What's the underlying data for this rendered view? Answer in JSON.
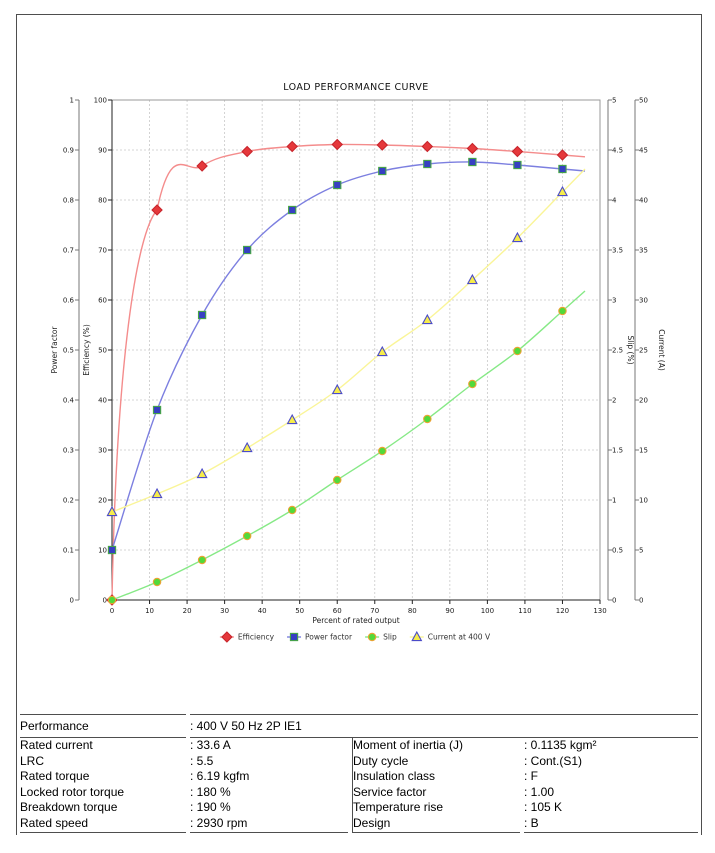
{
  "chart_data": {
    "type": "line",
    "title": "LOAD PERFORMANCE CURVE",
    "xlabel": "Percent of rated output",
    "x_range": [
      0,
      130
    ],
    "x_tick_step": 10,
    "grid": true,
    "legend_position": "bottom",
    "axes": [
      {
        "id": "power_factor",
        "label": "Power factor",
        "side": "left",
        "range": [
          0,
          1
        ],
        "tick_step": 0.1
      },
      {
        "id": "efficiency",
        "label": "Efficiency (%)",
        "side": "left",
        "range": [
          0,
          100
        ],
        "tick_step": 10
      },
      {
        "id": "slip",
        "label": "Slip (%)",
        "side": "right",
        "range": [
          0,
          5
        ],
        "tick_step": 0.5
      },
      {
        "id": "current",
        "label": "Current (A)",
        "side": "right",
        "range": [
          0,
          50
        ],
        "tick_step": 5
      }
    ],
    "x": [
      0,
      12,
      24,
      36,
      48,
      60,
      72,
      84,
      96,
      108,
      120
    ],
    "series": [
      {
        "name": "Efficiency",
        "axis": "efficiency",
        "marker": "diamond",
        "marker_color": "#e5383b",
        "marker_edge": "#c8252c",
        "line_color": "#f48c8c",
        "values": [
          0,
          78,
          86.8,
          89.7,
          90.7,
          91.1,
          91.0,
          90.7,
          90.3,
          89.7,
          89.0
        ]
      },
      {
        "name": "Power factor",
        "axis": "power_factor",
        "marker": "square",
        "marker_color": "#3740c2",
        "marker_edge": "#46a546",
        "line_color": "#7c7fe0",
        "values": [
          0.1,
          0.38,
          0.57,
          0.7,
          0.78,
          0.83,
          0.858,
          0.872,
          0.876,
          0.87,
          0.862
        ]
      },
      {
        "name": "Slip",
        "axis": "slip",
        "marker": "circle",
        "marker_color": "#52d93a",
        "marker_edge": "#eda233",
        "line_color": "#86e986",
        "values": [
          0,
          0.18,
          0.4,
          0.64,
          0.9,
          1.2,
          1.49,
          1.81,
          2.16,
          2.49,
          2.89
        ]
      },
      {
        "name": "Current at 400 V",
        "axis": "current",
        "marker": "triangle",
        "marker_color": "#f6ec4b",
        "marker_edge": "#4b4bc8",
        "line_color": "#faf598",
        "values": [
          8.8,
          10.6,
          12.6,
          15.2,
          18.0,
          21.0,
          24.8,
          28.0,
          32.0,
          36.2,
          40.8
        ]
      }
    ]
  },
  "table": {
    "performance": {
      "label": "Performance",
      "value": ": 400 V 50 Hz 2P IE1"
    },
    "rows": [
      {
        "l_label": "Rated current",
        "l_value": ": 33.6 A",
        "r_label": "Moment of inertia (J)",
        "r_value": ": 0.1135 kgm²"
      },
      {
        "l_label": "LRC",
        "l_value": ": 5.5",
        "r_label": "Duty cycle",
        "r_value": ": Cont.(S1)"
      },
      {
        "l_label": "Rated torque",
        "l_value": ": 6.19 kgfm",
        "r_label": "Insulation class",
        "r_value": ": F"
      },
      {
        "l_label": "Locked rotor torque",
        "l_value": ": 180 %",
        "r_label": "Service factor",
        "r_value": ": 1.00"
      },
      {
        "l_label": "Breakdown torque",
        "l_value": ": 190 %",
        "r_label": "Temperature rise",
        "r_value": ": 105 K"
      },
      {
        "l_label": "Rated speed",
        "l_value": ": 2930 rpm",
        "r_label": "Design",
        "r_value": ": B"
      }
    ]
  }
}
